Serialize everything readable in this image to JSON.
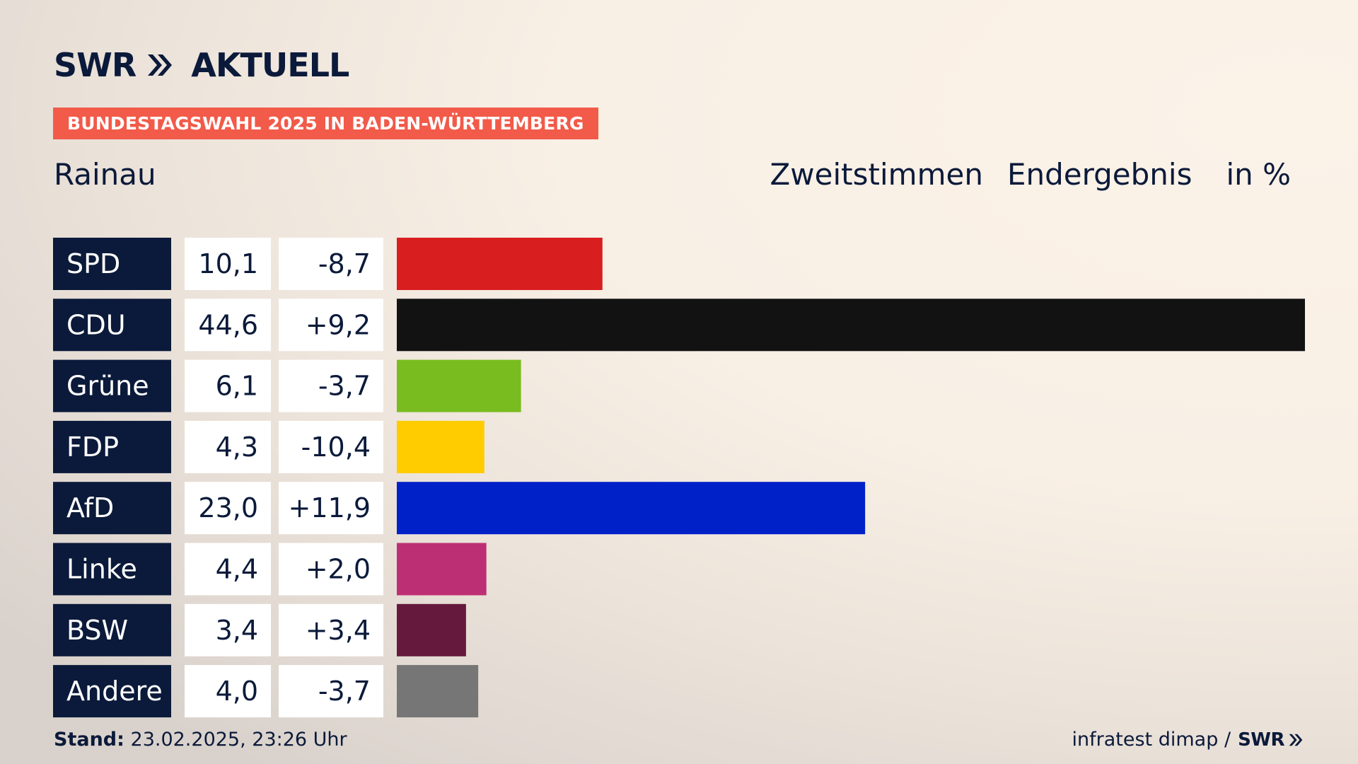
{
  "header": {
    "logo_text": "SWR",
    "logo_suffix": "AKTUELL",
    "tag": "BUNDESTAGSWAHL 2025 IN BADEN-WÜRTTEMBERG",
    "place": "Rainau",
    "vote_type": "Zweitstimmen",
    "result_type": "Endergebnis",
    "unit": "in %"
  },
  "footer": {
    "stand_label": "Stand:",
    "stand_value": "23.02.2025, 23:26 Uhr",
    "source": "infratest dimap /",
    "source_logo": "SWR"
  },
  "colors": {
    "label_bg": "#0b1a3a",
    "tag_bg": "#f25a49"
  },
  "chart_data": {
    "type": "bar",
    "orientation": "horizontal",
    "categories": [
      "SPD",
      "CDU",
      "Grüne",
      "FDP",
      "AfD",
      "Linke",
      "BSW",
      "Andere"
    ],
    "values": [
      10.1,
      44.6,
      6.1,
      4.3,
      23.0,
      4.4,
      3.4,
      4.0
    ],
    "values_display": [
      "10,1",
      "44,6",
      "6,1",
      "4,3",
      "23,0",
      "4,4",
      "3,4",
      "4,0"
    ],
    "changes_display": [
      "-8,7",
      "+9,2",
      "-3,7",
      "-10,4",
      "+11,9",
      "+2,0",
      "+3,4",
      "-3,7"
    ],
    "colors": [
      "#d81e1f",
      "#121212",
      "#79bc1f",
      "#ffcc00",
      "#0020c8",
      "#bd2f74",
      "#651a3d",
      "#767676"
    ],
    "xlim": [
      0,
      44.6
    ],
    "grid": false,
    "legend": "none"
  }
}
